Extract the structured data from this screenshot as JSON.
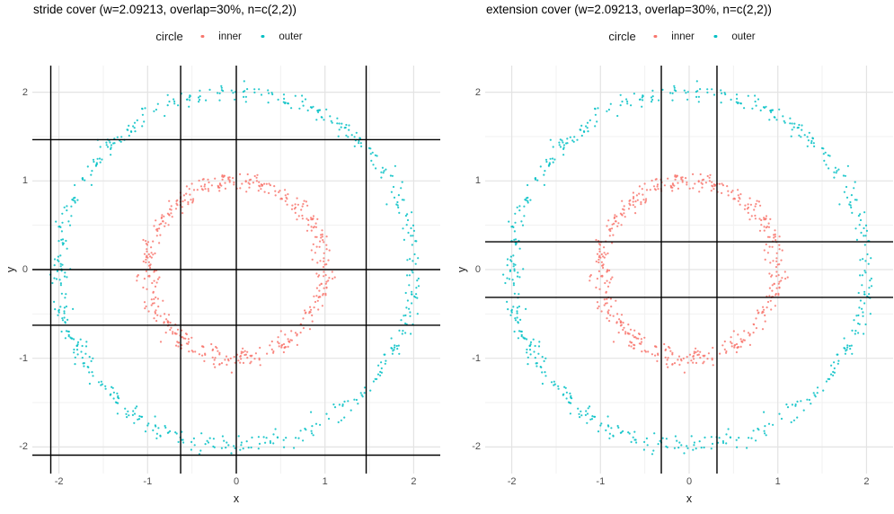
{
  "style": {
    "background": "#FFFFFF",
    "major_grid_color": "#E3E3E3",
    "minor_grid_color": "#F1F1F1",
    "tick_label_color": "#4D4D4D",
    "title_color": "#000000",
    "cover_line_color": "#000000",
    "inner_color": "#F8766D",
    "outer_color": "#00BFC4"
  },
  "chart_data": [
    {
      "type": "scatter",
      "title": "stride cover (w=2.09213, overlap=30%, n=c(2,2))",
      "xlabel": "x",
      "ylabel": "y",
      "xlim": [
        -2.3,
        2.3
      ],
      "ylim": [
        -2.3,
        2.3
      ],
      "x_ticks": [
        -2,
        -1,
        0,
        1,
        2
      ],
      "y_ticks": [
        -2,
        -1,
        0,
        1,
        2
      ],
      "minor_ticks": [
        -1.5,
        -0.5,
        0.5,
        1.5
      ],
      "grid": true,
      "legend": {
        "title": "circle",
        "position": "top",
        "entries": [
          {
            "label": "inner",
            "color": "#F8766D"
          },
          {
            "label": "outer",
            "color": "#00BFC4"
          }
        ]
      },
      "series": [
        {
          "name": "inner",
          "color": "#F8766D",
          "marker_radius_px": 1.1,
          "opacity": 0.85,
          "generator": {
            "shape": "noisy-circle",
            "n": 470,
            "radius": 1,
            "noise_sd": 0.055,
            "seed": 101
          }
        },
        {
          "name": "outer",
          "color": "#00BFC4",
          "marker_radius_px": 1.1,
          "opacity": 0.85,
          "generator": {
            "shape": "noisy-circle",
            "n": 540,
            "radius": 2,
            "noise_sd": 0.05,
            "seed": 202
          }
        }
      ],
      "cover_lines": {
        "color": "#000000",
        "x": [
          -2.09213,
          -0.62764,
          0,
          1.46449
        ],
        "y": [
          -2.09213,
          -0.62764,
          0,
          1.46449
        ]
      }
    },
    {
      "type": "scatter",
      "title": "extension cover (w=2.09213, overlap=30%, n=c(2,2))",
      "xlabel": "x",
      "ylabel": "y",
      "xlim": [
        -2.3,
        2.3
      ],
      "ylim": [
        -2.3,
        2.3
      ],
      "x_ticks": [
        -2,
        -1,
        0,
        1,
        2
      ],
      "y_ticks": [
        -2,
        -1,
        0,
        1,
        2
      ],
      "minor_ticks": [
        -1.5,
        -0.5,
        0.5,
        1.5
      ],
      "grid": true,
      "legend": {
        "title": "circle",
        "position": "top",
        "entries": [
          {
            "label": "inner",
            "color": "#F8766D"
          },
          {
            "label": "outer",
            "color": "#00BFC4"
          }
        ]
      },
      "series": [
        {
          "name": "inner",
          "color": "#F8766D",
          "marker_radius_px": 1.1,
          "opacity": 0.85,
          "generator": {
            "shape": "noisy-circle",
            "n": 470,
            "radius": 1,
            "noise_sd": 0.055,
            "seed": 101
          }
        },
        {
          "name": "outer",
          "color": "#00BFC4",
          "marker_radius_px": 1.1,
          "opacity": 0.85,
          "generator": {
            "shape": "noisy-circle",
            "n": 540,
            "radius": 2,
            "noise_sd": 0.05,
            "seed": 202
          }
        }
      ],
      "cover_lines": {
        "color": "#000000",
        "x": [
          -0.31382,
          0.31382
        ],
        "y": [
          -0.31382,
          0.31382
        ]
      }
    }
  ]
}
